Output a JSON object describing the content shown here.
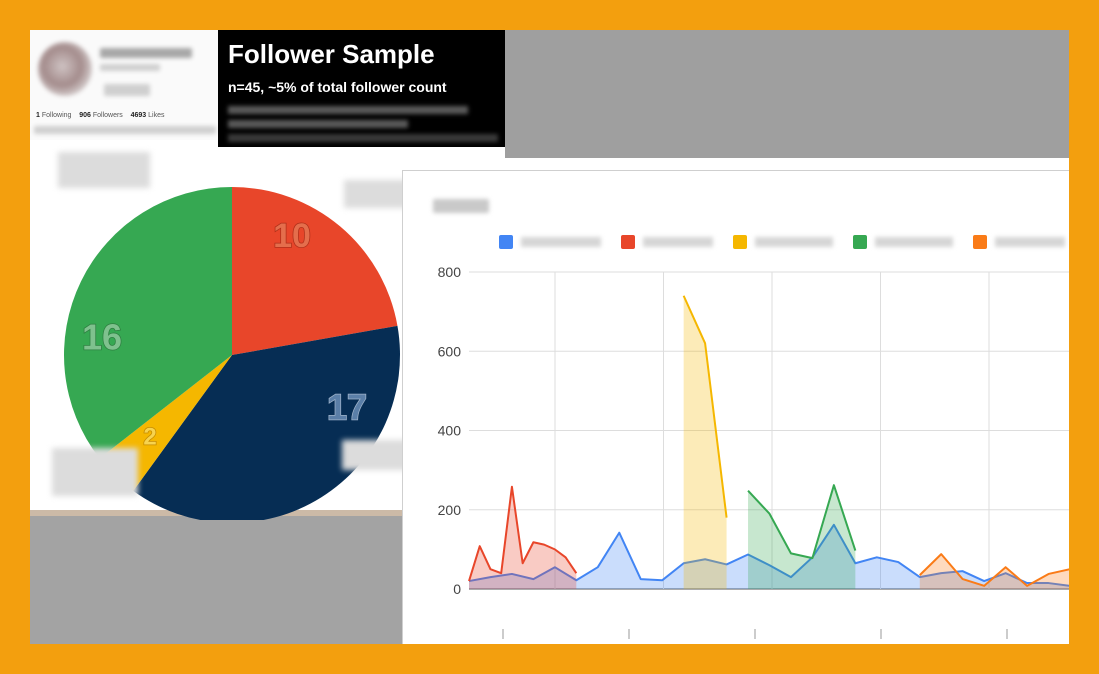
{
  "profile": {
    "following_count": "1",
    "following_label": "Following",
    "followers_count": "906",
    "followers_label": "Followers",
    "likes_count": "4693",
    "likes_label": "Likes"
  },
  "banner": {
    "title": "Follower Sample",
    "subtitle": "n=45, ~5% of total follower count"
  },
  "colors": {
    "background": "#f39f0e",
    "red": "#e8462a",
    "navy": "#062d54",
    "yellow": "#f5b700",
    "green": "#36a852",
    "blue": "#4285f4",
    "orange": "#fa7b17"
  },
  "chart_data": [
    {
      "type": "pie",
      "values": [
        10,
        17,
        2,
        16
      ],
      "colors": [
        "#e8462a",
        "#062d54",
        "#f5b700",
        "#36a852"
      ],
      "labels": [
        "10",
        "17",
        "2",
        "16"
      ]
    },
    {
      "type": "area",
      "ylim": [
        0,
        800
      ],
      "yticks": [
        "0",
        "200",
        "400",
        "600",
        "800"
      ],
      "grid": true,
      "legend": "top",
      "x_count": 57,
      "series": [
        {
          "color": "#4285f4",
          "points": [
            [
              0,
              20
            ],
            [
              2,
              30
            ],
            [
              4,
              38
            ],
            [
              6,
              25
            ],
            [
              8,
              55
            ],
            [
              10,
              22
            ],
            [
              12,
              55
            ],
            [
              14,
              142
            ],
            [
              16,
              25
            ],
            [
              18,
              22
            ],
            [
              20,
              65
            ],
            [
              22,
              75
            ],
            [
              24,
              62
            ],
            [
              26,
              87
            ],
            [
              28,
              60
            ],
            [
              30,
              30
            ],
            [
              32,
              80
            ],
            [
              34,
              162
            ],
            [
              36,
              65
            ],
            [
              38,
              80
            ],
            [
              40,
              68
            ],
            [
              42,
              30
            ],
            [
              44,
              40
            ],
            [
              46,
              45
            ],
            [
              48,
              20
            ],
            [
              50,
              40
            ],
            [
              52,
              15
            ],
            [
              54,
              15
            ],
            [
              56,
              8
            ]
          ]
        },
        {
          "color": "#e8462a",
          "points": [
            [
              0,
              20
            ],
            [
              1,
              108
            ],
            [
              2,
              50
            ],
            [
              3,
              40
            ],
            [
              4,
              258
            ],
            [
              5,
              65
            ],
            [
              6,
              118
            ],
            [
              7,
              112
            ],
            [
              8,
              100
            ],
            [
              9,
              80
            ],
            [
              10,
              40
            ]
          ]
        },
        {
          "color": "#f5b700",
          "points": [
            [
              20,
              740
            ],
            [
              22,
              620
            ],
            [
              24,
              180
            ]
          ]
        },
        {
          "color": "#36a852",
          "points": [
            [
              26,
              248
            ],
            [
              28,
              190
            ],
            [
              30,
              90
            ],
            [
              32,
              78
            ],
            [
              34,
              262
            ],
            [
              36,
              97
            ]
          ]
        },
        {
          "color": "#fa7b17",
          "points": [
            [
              42,
              35
            ],
            [
              44,
              88
            ],
            [
              46,
              25
            ],
            [
              48,
              8
            ],
            [
              50,
              55
            ],
            [
              52,
              8
            ],
            [
              54,
              38
            ],
            [
              56,
              50
            ]
          ]
        }
      ]
    }
  ]
}
